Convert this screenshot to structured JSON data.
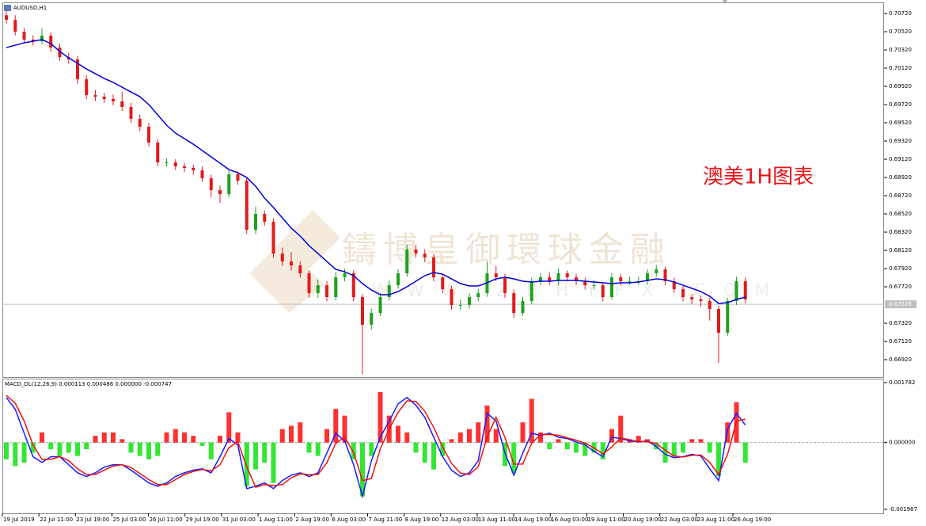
{
  "chart_data": [
    {
      "type": "candlestick",
      "title": "AUDUSD,H1",
      "annotation": "澳美1H图表",
      "watermark": "鑄博皇御環球金融",
      "watermark_url": "WWW.ZBHYFX.COM",
      "x_labels": [
        "19 Jul 2019",
        "22 Jul 11:00",
        "23 Jul 19:00",
        "25 Jul 03:00",
        "26 Jul 11:00",
        "29 Jul 19:00",
        "31 Jul 03:00",
        "1 Aug 11:00",
        "2 Aug 19:00",
        "6 Aug 03:00",
        "7 Aug 11:00",
        "8 Aug 19:00",
        "12 Aug 03:00",
        "13 Aug 11:00",
        "14 Aug 19:00",
        "16 Aug 03:00",
        "19 Aug 11:00",
        "20 Aug 19:00",
        "22 Aug 03:00",
        "23 Aug 11:00",
        "26 Aug 19:00"
      ],
      "open": [
        0.707,
        0.70651,
        0.7052,
        0.70433,
        0.70416,
        0.70477,
        0.70346,
        0.70242,
        0.70216,
        0.69998,
        0.69824,
        0.69807,
        0.69781,
        0.69755,
        0.69694,
        0.69564,
        0.69477,
        0.69303,
        0.69085,
        0.69085,
        0.69042,
        0.69024,
        0.68998,
        0.68911,
        0.68781,
        0.68737,
        0.68955,
        0.68885,
        0.68346,
        0.6852,
        0.68433,
        0.68085,
        0.67998,
        0.67955,
        0.67868,
        0.6765,
        0.67737,
        0.67607,
        0.67824,
        0.67868,
        0.67607,
        0.67303,
        0.67433,
        0.67607,
        0.67737,
        0.67868,
        0.68129,
        0.68085,
        0.68042,
        0.67824,
        0.67694,
        0.6752,
        0.6752,
        0.67607,
        0.6765,
        0.67868,
        0.67824,
        0.6765,
        0.67433,
        0.67564,
        0.67781,
        0.67824,
        0.67781,
        0.67868,
        0.67824,
        0.67781,
        0.67737,
        0.67737,
        0.67607,
        0.67824,
        0.67781,
        0.67781,
        0.67781,
        0.67868,
        0.67911,
        0.67781,
        0.67694,
        0.67607,
        0.67581,
        0.67564,
        0.67477,
        0.67216,
        0.67564,
        0.67781
      ],
      "high": [
        0.7076,
        0.707,
        0.7056,
        0.7048,
        0.7056,
        0.7051,
        0.7039,
        0.7029,
        0.7025,
        0.7004,
        0.6988,
        0.6985,
        0.6983,
        0.6986,
        0.6974,
        0.6961,
        0.6952,
        0.6934,
        0.6913,
        0.6912,
        0.6908,
        0.6906,
        0.6904,
        0.6895,
        0.6883,
        0.69,
        0.6899,
        0.6892,
        0.686,
        0.6856,
        0.6847,
        0.6815,
        0.681,
        0.68,
        0.679,
        0.678,
        0.6778,
        0.6788,
        0.6792,
        0.679,
        0.6764,
        0.6748,
        0.6765,
        0.6779,
        0.6791,
        0.6818,
        0.6818,
        0.6813,
        0.6808,
        0.6786,
        0.6773,
        0.6758,
        0.6765,
        0.677,
        0.68,
        0.6795,
        0.6786,
        0.6769,
        0.6761,
        0.6782,
        0.6787,
        0.6788,
        0.6792,
        0.679,
        0.6786,
        0.6782,
        0.6779,
        0.6777,
        0.6787,
        0.6786,
        0.6783,
        0.6783,
        0.6791,
        0.6796,
        0.6794,
        0.6782,
        0.6773,
        0.6764,
        0.6762,
        0.676,
        0.6751,
        0.676,
        0.6783,
        0.6782
      ],
      "low": [
        0.7061,
        0.7048,
        0.7039,
        0.7037,
        0.7038,
        0.703,
        0.702,
        0.7017,
        0.6995,
        0.6978,
        0.6976,
        0.6974,
        0.6971,
        0.6965,
        0.6952,
        0.6943,
        0.6926,
        0.6904,
        0.6904,
        0.69,
        0.6898,
        0.6895,
        0.6887,
        0.687,
        0.6864,
        0.687,
        0.6884,
        0.683,
        0.683,
        0.6839,
        0.6804,
        0.6795,
        0.679,
        0.6782,
        0.676,
        0.676,
        0.6756,
        0.6757,
        0.6778,
        0.6756,
        0.66763,
        0.6725,
        0.674,
        0.6757,
        0.677,
        0.6783,
        0.6804,
        0.6799,
        0.6778,
        0.6765,
        0.6747,
        0.6747,
        0.6748,
        0.6756,
        0.6761,
        0.6778,
        0.676,
        0.6738,
        0.674,
        0.6753,
        0.6774,
        0.6774,
        0.6774,
        0.6778,
        0.6774,
        0.6769,
        0.6769,
        0.6756,
        0.6758,
        0.6774,
        0.6774,
        0.6774,
        0.6774,
        0.6783,
        0.6774,
        0.6765,
        0.6756,
        0.6753,
        0.675,
        0.6735,
        0.66885,
        0.6718,
        0.6752,
        0.6754
      ],
      "close": [
        0.70651,
        0.7052,
        0.70433,
        0.70416,
        0.70477,
        0.70346,
        0.70242,
        0.70216,
        0.69998,
        0.69824,
        0.69807,
        0.69781,
        0.69755,
        0.69694,
        0.69564,
        0.69477,
        0.69303,
        0.69085,
        0.69085,
        0.69042,
        0.69024,
        0.68998,
        0.68911,
        0.68781,
        0.68737,
        0.68955,
        0.68885,
        0.68346,
        0.6852,
        0.68433,
        0.68085,
        0.67998,
        0.67955,
        0.67868,
        0.6765,
        0.67737,
        0.67607,
        0.67824,
        0.67868,
        0.67607,
        0.67303,
        0.67433,
        0.67607,
        0.67737,
        0.67868,
        0.68129,
        0.68085,
        0.68042,
        0.67824,
        0.67694,
        0.6752,
        0.6752,
        0.67607,
        0.6765,
        0.67868,
        0.67824,
        0.6765,
        0.67433,
        0.67564,
        0.67781,
        0.67824,
        0.67781,
        0.67868,
        0.67824,
        0.67781,
        0.67737,
        0.67737,
        0.67607,
        0.67824,
        0.67781,
        0.67781,
        0.67781,
        0.67868,
        0.67911,
        0.67781,
        0.67694,
        0.67607,
        0.67581,
        0.67564,
        0.67477,
        0.67216,
        0.67564,
        0.67781,
        0.67581
      ],
      "up_color": "#1fa01f",
      "down_color": "#e01b1b",
      "moving_average": {
        "color": "#0000dd",
        "values": [
          0.70346,
          0.70372,
          0.70398,
          0.70416,
          0.70433,
          0.7039,
          0.70303,
          0.70233,
          0.70172,
          0.70111,
          0.70059,
          0.70007,
          0.69964,
          0.69911,
          0.69859,
          0.69807,
          0.6972,
          0.69607,
          0.69494,
          0.69407,
          0.69346,
          0.69285,
          0.69216,
          0.69146,
          0.69077,
          0.69007,
          0.68972,
          0.6892,
          0.68824,
          0.68694,
          0.6859,
          0.68477,
          0.68364,
          0.68277,
          0.68172,
          0.68085,
          0.67998,
          0.67911,
          0.67885,
          0.67842,
          0.67755,
          0.67685,
          0.67633,
          0.67633,
          0.67668,
          0.6772,
          0.67781,
          0.67842,
          0.67877,
          0.67859,
          0.67807,
          0.67755,
          0.67729,
          0.67729,
          0.67764,
          0.67807,
          0.67824,
          0.67807,
          0.67781,
          0.67772,
          0.67781,
          0.67781,
          0.6779,
          0.6779,
          0.6779,
          0.67781,
          0.67772,
          0.67764,
          0.67755,
          0.67764,
          0.67764,
          0.67772,
          0.6779,
          0.67807,
          0.67798,
          0.67772,
          0.67737,
          0.67703,
          0.67668,
          0.67616,
          0.67537,
          0.67546,
          0.67581,
          0.67607
        ]
      },
      "last_price": {
        "value": 0.67528,
        "label": "0.67528"
      },
      "ylim": [
        0.66729,
        0.70842
      ],
      "yticks": [
        {
          "value": 0.7072,
          "label": "0.70720"
        },
        {
          "value": 0.7052,
          "label": "0.70520"
        },
        {
          "value": 0.7032,
          "label": "0.70320"
        },
        {
          "value": 0.7012,
          "label": "0.70120"
        },
        {
          "value": 0.6992,
          "label": "0.69920"
        },
        {
          "value": 0.6972,
          "label": "0.69720"
        },
        {
          "value": 0.6952,
          "label": "0.69520"
        },
        {
          "value": 0.6932,
          "label": "0.69320"
        },
        {
          "value": 0.6912,
          "label": "0.69120"
        },
        {
          "value": 0.6892,
          "label": "0.68920"
        },
        {
          "value": 0.6872,
          "label": "0.68720"
        },
        {
          "value": 0.6852,
          "label": "0.68520"
        },
        {
          "value": 0.6832,
          "label": "0.68320"
        },
        {
          "value": 0.6812,
          "label": "0.68120"
        },
        {
          "value": 0.6792,
          "label": "0.67920"
        },
        {
          "value": 0.6772,
          "label": "0.67720"
        },
        {
          "value": 0.6732,
          "label": "0.67320"
        },
        {
          "value": 0.6712,
          "label": "0.67120"
        },
        {
          "value": 0.6692,
          "label": "0.66920"
        }
      ]
    },
    {
      "type": "macd",
      "title": "MACD_DL(12,26,9) 0.000113 0.000486 0.000000 -0.000747",
      "histogram": {
        "up_color": "#ff3030",
        "down_color": "#33e633",
        "values": [
          -0.0005,
          -0.0007,
          -0.0006,
          -0.0003,
          0.0003,
          -0.0002,
          -0.0004,
          -0.0003,
          -0.0004,
          -0.0002,
          0.0002,
          0.0003,
          0.0003,
          0.0001,
          -0.0003,
          -0.0004,
          -0.0005,
          -0.0004,
          0.0003,
          0.0004,
          0.0003,
          0.0002,
          -0.0001,
          -0.0005,
          0.0002,
          0.0009,
          0.0003,
          -0.0013,
          -0.0008,
          -0.0006,
          -0.0012,
          0.0004,
          0.0005,
          0.0006,
          -0.0003,
          -0.0004,
          0.0004,
          0.001,
          0.0008,
          -0.0005,
          -0.0016,
          -0.0004,
          0.0015,
          0.0008,
          0.0005,
          0.0003,
          -0.0003,
          -0.0006,
          -0.0008,
          -0.0004,
          0.0001,
          0.0003,
          0.0004,
          0.0006,
          0.0011,
          0.0004,
          -0.0007,
          -0.0009,
          0.0006,
          0.0013,
          0.0003,
          -0.0002,
          0.0001,
          -0.0002,
          -0.0003,
          -0.0004,
          -0.0003,
          -0.0005,
          0.0004,
          0.0008,
          0.0001,
          0.0002,
          0.0001,
          -0.0002,
          -0.0006,
          -0.0004,
          -0.0003,
          0.0001,
          0.0001,
          -0.0003,
          -0.001,
          0.0006,
          0.0012,
          -0.0006
        ]
      },
      "macd": {
        "color": "#1a1aff",
        "values": [
          0.00134,
          0.00099,
          0.00028,
          -0.00042,
          -0.00059,
          -0.00042,
          -0.00042,
          -0.00066,
          -0.0009,
          -0.00101,
          -0.0009,
          -0.00073,
          -0.00066,
          -0.00066,
          -0.00082,
          -0.00101,
          -0.0012,
          -0.0013,
          -0.0012,
          -0.00101,
          -0.0009,
          -0.00082,
          -0.00078,
          -0.0009,
          -0.00042,
          0.00012,
          -7e-05,
          -0.00137,
          -0.0013,
          -0.0012,
          -0.00137,
          -0.00113,
          -0.00097,
          -0.0009,
          -0.00101,
          -0.0009,
          -0.00031,
          0.00028,
          5e-05,
          -0.00066,
          -0.0016,
          -0.00054,
          0.00016,
          0.00064,
          0.00115,
          0.00134,
          0.00111,
          0.00075,
          0.00016,
          -0.00042,
          -0.00082,
          -0.00101,
          -0.0009,
          -0.00054,
          0.00087,
          0.00064,
          -0.00031,
          -0.00097,
          -0.00031,
          0.00028,
          0.00021,
          0.00028,
          0.00016,
          0.00012,
          2e-05,
          -7e-05,
          -0.00026,
          -0.00042,
          0.00016,
          0.00012,
          5e-05,
          2e-05,
          5e-05,
          -0.00012,
          -0.00035,
          -0.00045,
          -0.00042,
          -0.00035,
          -0.0004,
          -0.00078,
          -0.00113,
          0.0004,
          0.00087,
          0.00052
        ]
      },
      "signal": {
        "color": "#ee1111",
        "values": [
          0.0014,
          0.00117,
          0.00064,
          -7e-05,
          -0.0005,
          -0.0005,
          -0.00042,
          -0.00054,
          -0.00078,
          -0.00095,
          -0.00095,
          -0.00082,
          -0.0007,
          -0.00066,
          -0.00074,
          -0.00092,
          -0.0011,
          -0.00125,
          -0.00125,
          -0.0011,
          -0.00095,
          -0.00086,
          -0.0008,
          -0.00084,
          -0.00066,
          -0.00015,
          2e-05,
          -0.00072,
          -0.00133,
          -0.00125,
          -0.00128,
          -0.00125,
          -0.00105,
          -0.00093,
          -0.00095,
          -0.00095,
          -0.0006,
          -2e-05,
          0.00016,
          -0.0003,
          -0.00113,
          -0.00107,
          -0.00019,
          0.0004,
          0.0009,
          0.00124,
          0.00122,
          0.00093,
          0.00045,
          -0.00013,
          -0.00062,
          -0.00091,
          -0.00095,
          -0.00072,
          0.00016,
          0.00075,
          0.00016,
          -0.00064,
          -0.00064,
          -2e-05,
          0.00024,
          0.00024,
          0.00022,
          0.00014,
          7e-05,
          -2e-05,
          -0.00016,
          -0.00034,
          -0.00013,
          0.00014,
          8e-05,
          3e-05,
          3e-05,
          -3e-05,
          -0.00023,
          -0.0004,
          -0.00043,
          -0.00038,
          -0.00037,
          -0.00059,
          -0.00095,
          -0.00036,
          0.00063,
          0.0007
        ]
      },
      "ylim": [
        -0.001987,
        0.001782
      ],
      "yticks": [
        {
          "value": 0.001782,
          "label": "0.001782"
        },
        {
          "value": 0,
          "label": "0.000000"
        },
        {
          "value": -0.001987,
          "label": "-0.001987"
        }
      ]
    }
  ]
}
